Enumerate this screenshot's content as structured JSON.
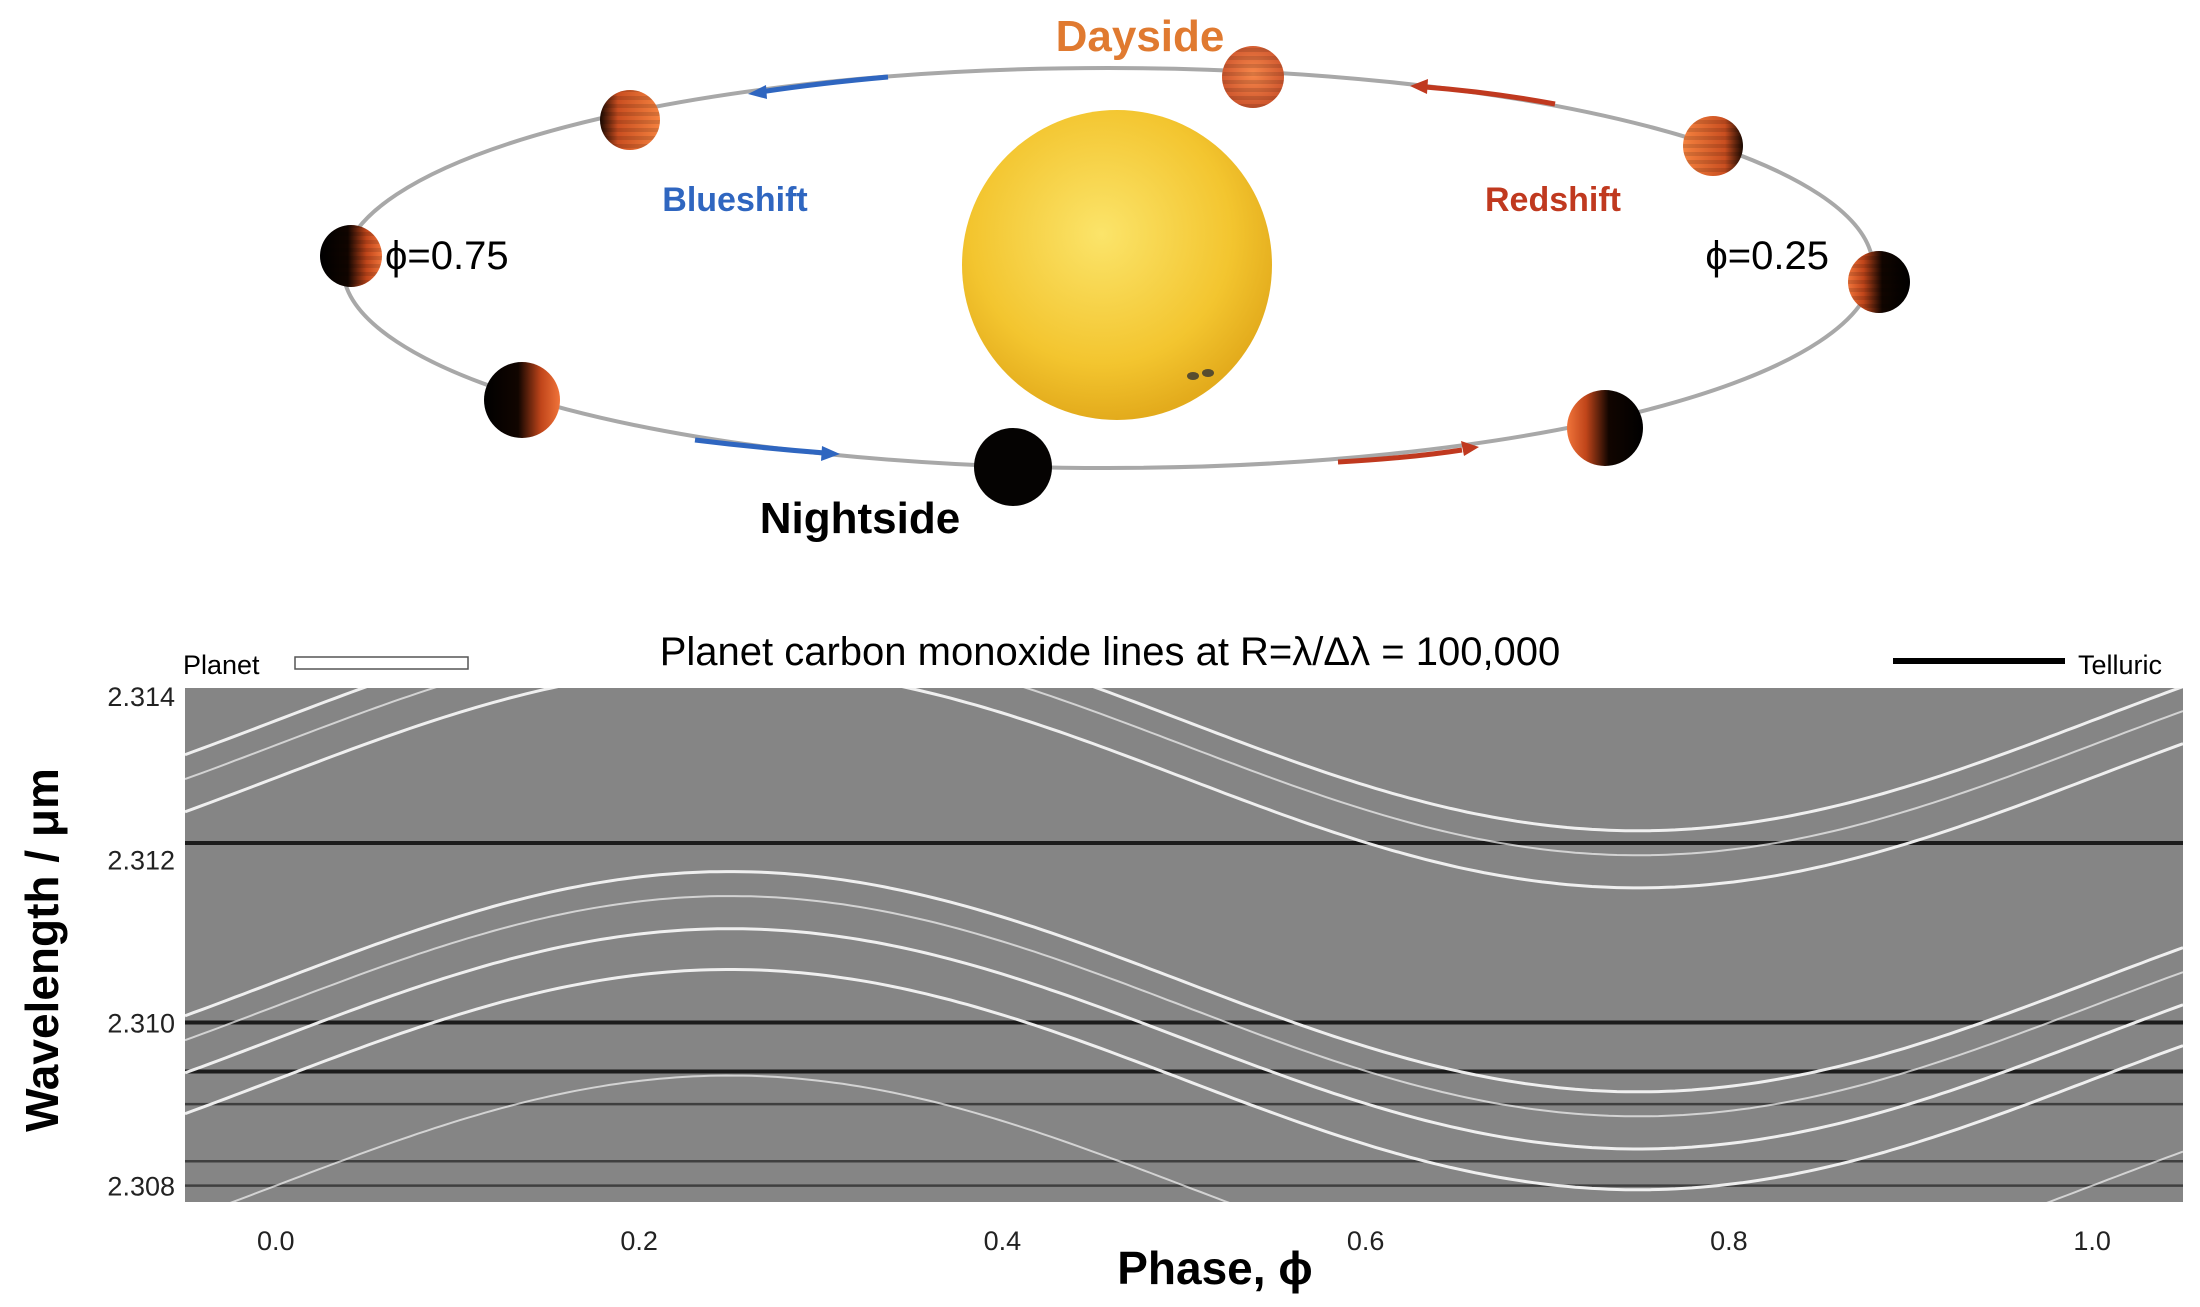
{
  "orbit_diagram": {
    "dayside_label": "Dayside",
    "nightside_label": "Nightside",
    "blueshift_label": "Blueshift",
    "redshift_label": "Redshift",
    "phase_left_label": "ϕ=0.75",
    "phase_right_label": "ϕ=0.25",
    "colors": {
      "dayside": "#e07a30",
      "blueshift": "#2f66c0",
      "redshift": "#c0391f",
      "star": "#f6cd3a",
      "orbit": "#a8a8a8"
    }
  },
  "spectrum_panel": {
    "title": "Planet carbon monoxide lines at R=λ/Δλ = 100,000",
    "legend": {
      "planet_label": "Planet",
      "telluric_label": "Telluric"
    },
    "xlabel": "Phase, ϕ",
    "ylabel": "Wavelength / μm",
    "x_ticks": [
      "0.0",
      "0.2",
      "0.4",
      "0.6",
      "0.8",
      "1.0"
    ],
    "y_ticks": [
      "2.308",
      "2.310",
      "2.312",
      "2.314"
    ]
  },
  "chart_data": {
    "type": "heatmap",
    "title": "Planet carbon monoxide lines at R=λ/Δλ = 100,000",
    "xlabel": "Phase, ϕ",
    "ylabel": "Wavelength / μm",
    "xlim": [
      -0.05,
      1.05
    ],
    "ylim": [
      2.3078,
      2.3141
    ],
    "x_ticks": [
      0.0,
      0.2,
      0.4,
      0.6,
      0.8,
      1.0
    ],
    "y_ticks": [
      2.308,
      2.31,
      2.312,
      2.314
    ],
    "telluric_lines_um": [
      2.3122,
      2.31,
      2.3094,
      2.309,
      2.3083,
      2.308
    ],
    "planet_lines": {
      "doppler_amplitude_um": 0.00135,
      "rest_wavelengths_um": [
        2.3137,
        2.3134,
        2.313,
        2.3105,
        2.3102,
        2.3098,
        2.3093,
        2.308
      ],
      "curve": "lambda = rest + amplitude * sin(2*pi*phase)"
    }
  }
}
